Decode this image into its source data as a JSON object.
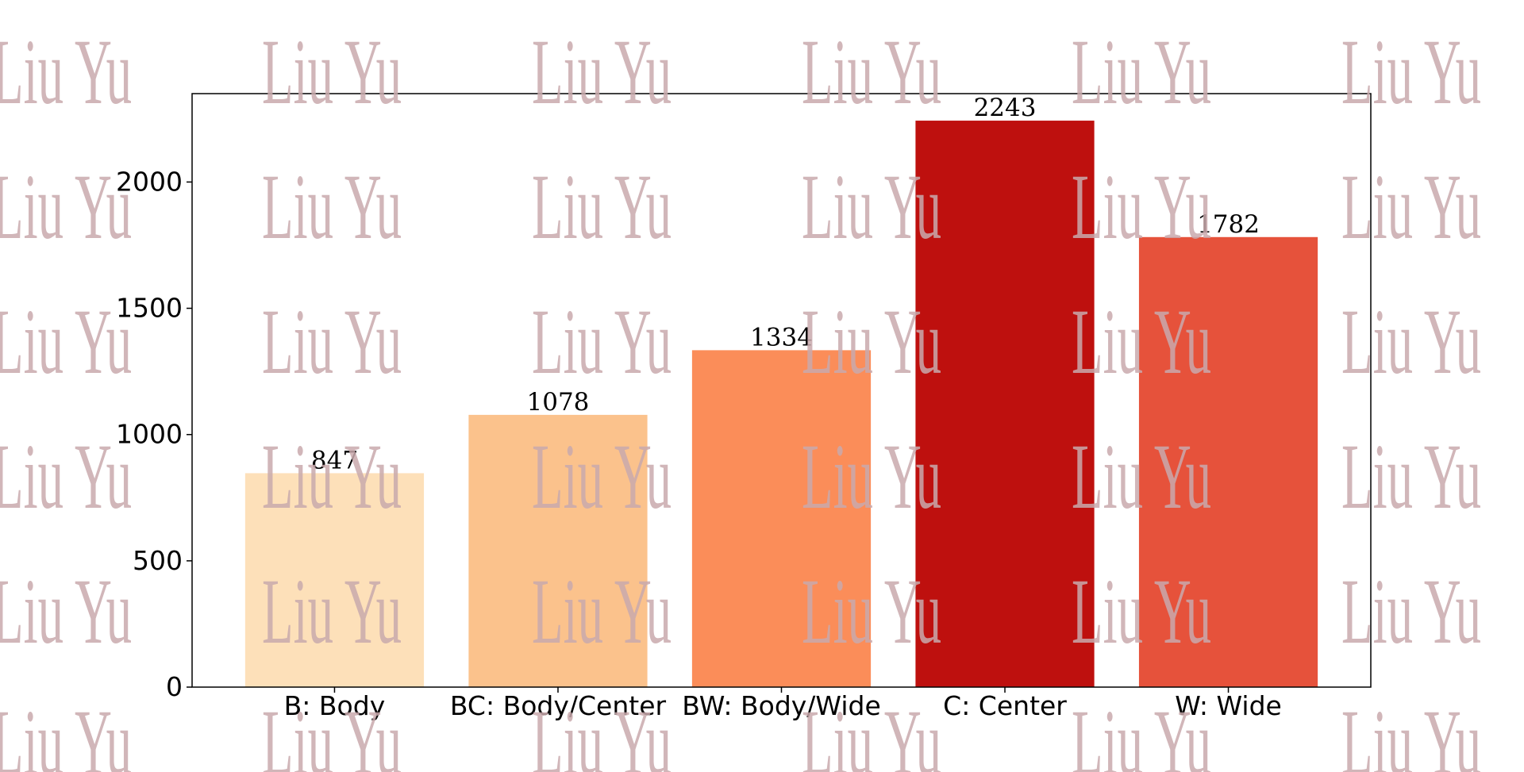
{
  "watermark": {
    "text": "Liu Yu",
    "color": "#c9aaad"
  },
  "chart_data": {
    "type": "bar",
    "title": "",
    "xlabel": "",
    "ylabel": "",
    "categories": [
      "B: Body",
      "BC: Body/Center",
      "BW: Body/Wide",
      "C: Center",
      "W: Wide"
    ],
    "values": [
      847,
      1078,
      1334,
      2243,
      1782
    ],
    "data_labels": [
      "847",
      "1078",
      "1334",
      "2243",
      "1782"
    ],
    "colors": [
      "#fde0b9",
      "#fbc28c",
      "#fb8d59",
      "#be100e",
      "#e6523b"
    ],
    "ylim": [
      0,
      2350
    ],
    "yticks": [
      0,
      500,
      1000,
      1500,
      2000
    ],
    "ytick_labels": [
      "0",
      "500",
      "1000",
      "1500",
      "2000"
    ],
    "grid": false,
    "legend": "none"
  }
}
